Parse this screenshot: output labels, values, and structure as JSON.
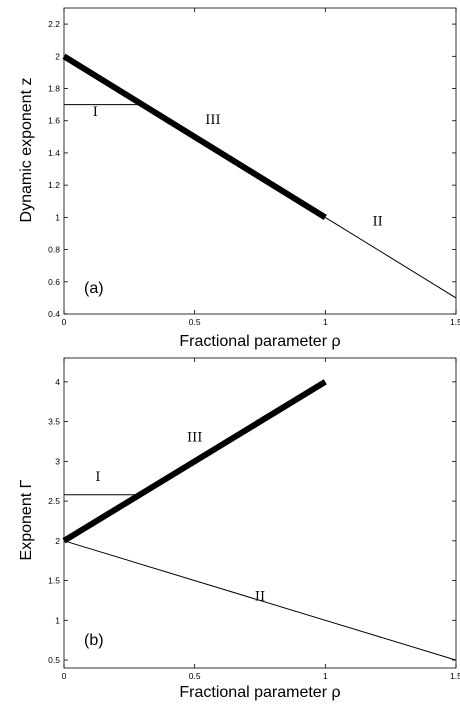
{
  "chart_data": [
    {
      "type": "line",
      "panel_label": "(a)",
      "xlabel": "Fractional parameter ρ",
      "ylabel": "Dynamic exponent  z",
      "xlim": [
        0,
        1.5
      ],
      "ylim": [
        0.4,
        2.3
      ],
      "xticks": [
        0,
        0.5,
        1,
        1.5
      ],
      "xtick_labels": [
        "0",
        "0.5",
        "1",
        "1.5"
      ],
      "yticks": [
        0.4,
        0.6,
        0.8,
        1,
        1.2,
        1.4,
        1.6,
        1.8,
        2,
        2.2
      ],
      "ytick_labels": [
        "0.4",
        "0.6",
        "0.8",
        "1",
        "1.2",
        "1.4",
        "1.6",
        "1.8",
        "2",
        "2.2"
      ],
      "series": [
        {
          "label": "I",
          "x": [
            0,
            0.29
          ],
          "y": [
            1.7,
            1.7
          ],
          "style": "thin",
          "label_at": [
            0.12,
            1.63
          ]
        },
        {
          "label": "III",
          "x": [
            0,
            1
          ],
          "y": [
            2,
            1
          ],
          "style": "thick",
          "label_at": [
            0.57,
            1.58
          ]
        },
        {
          "label": "II",
          "x": [
            1,
            1.5
          ],
          "y": [
            1,
            0.5
          ],
          "style": "thin",
          "label_at": [
            1.2,
            0.95
          ]
        }
      ]
    },
    {
      "type": "line",
      "panel_label": "(b)",
      "xlabel": "Fractional parameter ρ",
      "ylabel": "Exponent  Γ",
      "xlim": [
        0,
        1.5
      ],
      "ylim": [
        0.4,
        4.3
      ],
      "xticks": [
        0,
        0.5,
        1,
        1.5
      ],
      "xtick_labels": [
        "0",
        "0.5",
        "1",
        "1.5"
      ],
      "yticks": [
        0.5,
        1,
        1.5,
        2,
        2.5,
        3,
        3.5,
        4
      ],
      "ytick_labels": [
        "0.5",
        "1",
        "1.5",
        "2",
        "2.5",
        "3",
        "3.5",
        "4"
      ],
      "series": [
        {
          "label": "I",
          "x": [
            0,
            0.29
          ],
          "y": [
            2.58,
            2.58
          ],
          "style": "thin",
          "label_at": [
            0.13,
            2.75
          ]
        },
        {
          "label": "III",
          "x": [
            0,
            1
          ],
          "y": [
            2,
            4
          ],
          "style": "thick",
          "label_at": [
            0.5,
            3.25
          ]
        },
        {
          "label": "II",
          "x": [
            0,
            1.5
          ],
          "y": [
            2,
            0.5
          ],
          "style": "thin",
          "label_at": [
            0.75,
            1.25
          ]
        }
      ]
    }
  ]
}
